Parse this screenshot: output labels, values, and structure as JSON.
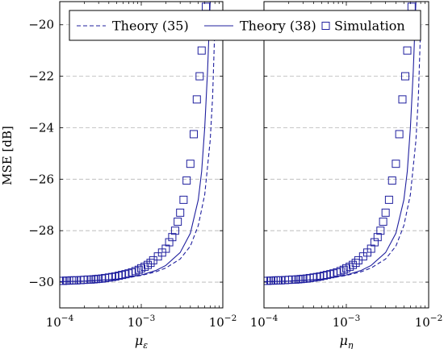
{
  "chart_data": [
    {
      "type": "line",
      "xlabel": "μ_ε",
      "ylabel": "MSE [dB]",
      "xscale": "log",
      "xlim": [
        0.0001,
        0.01
      ],
      "ylim": [
        -31,
        -19.1
      ],
      "xticks": [
        {
          "value": 0.0001,
          "base": "10",
          "exp": "−4"
        },
        {
          "value": 0.001,
          "base": "10",
          "exp": "−3"
        },
        {
          "value": 0.01,
          "base": "10",
          "exp": "−2"
        }
      ],
      "yticks": [
        {
          "value": -20,
          "label": "−20"
        },
        {
          "value": -22,
          "label": "−22"
        },
        {
          "value": -24,
          "label": "−24"
        },
        {
          "value": -26,
          "label": "−26"
        },
        {
          "value": -28,
          "label": "−28"
        },
        {
          "value": -30,
          "label": "−30"
        }
      ],
      "grid": "horizontal dashed",
      "series": [
        {
          "name": "Theory (35)",
          "style": "dashed",
          "color": "#1f1f9e",
          "x": [
            0.0001,
            0.0002,
            0.0003,
            0.0005,
            0.0007,
            0.001,
            0.0015,
            0.002,
            0.003,
            0.004,
            0.005,
            0.006,
            0.007,
            0.0075,
            0.008
          ],
          "y": [
            -29.98,
            -29.96,
            -29.93,
            -29.88,
            -29.82,
            -29.74,
            -29.6,
            -29.45,
            -29.1,
            -28.6,
            -27.8,
            -26.6,
            -24.5,
            -22.8,
            -20.0
          ]
        },
        {
          "name": "Theory (38)",
          "style": "solid",
          "color": "#1f1f9e",
          "x": [
            0.0001,
            0.0002,
            0.0003,
            0.0005,
            0.0007,
            0.001,
            0.0015,
            0.002,
            0.003,
            0.004,
            0.005,
            0.0055,
            0.006,
            0.0065,
            0.007
          ],
          "y": [
            -29.98,
            -29.96,
            -29.93,
            -29.88,
            -29.81,
            -29.72,
            -29.55,
            -29.35,
            -28.85,
            -28.1,
            -26.8,
            -25.7,
            -24.0,
            -21.8,
            -19.1
          ]
        },
        {
          "name": "Simulation",
          "style": "square-markers",
          "color": "#1f1f9e",
          "x": [
            0.0001,
            0.00011,
            0.00012,
            0.00013,
            0.00014,
            0.00015,
            0.00016,
            0.00018,
            0.0002,
            0.00022,
            0.00024,
            0.00026,
            0.00028,
            0.0003,
            0.00033,
            0.00036,
            0.0004,
            0.00044,
            0.00048,
            0.00053,
            0.00058,
            0.00064,
            0.0007,
            0.00077,
            0.00085,
            0.00093,
            0.001,
            0.0011,
            0.0012,
            0.0013,
            0.0014,
            0.0016,
            0.0018,
            0.002,
            0.0022,
            0.0024,
            0.0026,
            0.0028,
            0.003,
            0.0033,
            0.0036,
            0.004,
            0.0044,
            0.0048,
            0.0052,
            0.0055,
            0.0058,
            0.0062
          ],
          "y": [
            -29.95,
            -29.95,
            -29.94,
            -29.94,
            -29.93,
            -29.93,
            -29.93,
            -29.92,
            -29.91,
            -29.9,
            -29.9,
            -29.89,
            -29.88,
            -29.87,
            -29.86,
            -29.84,
            -29.82,
            -29.8,
            -29.78,
            -29.75,
            -29.72,
            -29.69,
            -29.66,
            -29.62,
            -29.57,
            -29.52,
            -29.46,
            -29.4,
            -29.33,
            -29.25,
            -29.15,
            -29.0,
            -28.85,
            -28.7,
            -28.45,
            -28.25,
            -28.0,
            -27.65,
            -27.3,
            -26.8,
            -26.05,
            -25.4,
            -24.25,
            -22.9,
            -22.0,
            -21.0,
            -19.7,
            -19.3
          ]
        }
      ]
    },
    {
      "type": "line",
      "xlabel": "μ_η",
      "ylabel": "",
      "xscale": "log",
      "xlim": [
        0.0001,
        0.01
      ],
      "ylim": [
        -31,
        -19.1
      ],
      "xticks": [
        {
          "value": 0.0001,
          "base": "10",
          "exp": "−4"
        },
        {
          "value": 0.001,
          "base": "10",
          "exp": "−3"
        },
        {
          "value": 0.01,
          "base": "10",
          "exp": "−2"
        }
      ],
      "grid": "horizontal dashed",
      "series": [
        {
          "name": "Theory (35)",
          "style": "dashed",
          "color": "#1f1f9e",
          "x": [
            0.0001,
            0.0002,
            0.0003,
            0.0005,
            0.0007,
            0.001,
            0.0015,
            0.002,
            0.003,
            0.004,
            0.005,
            0.006,
            0.007,
            0.0075,
            0.008
          ],
          "y": [
            -29.98,
            -29.96,
            -29.93,
            -29.88,
            -29.82,
            -29.74,
            -29.6,
            -29.45,
            -29.1,
            -28.6,
            -27.8,
            -26.6,
            -24.5,
            -22.8,
            -20.0
          ]
        },
        {
          "name": "Theory (38)",
          "style": "solid",
          "color": "#1f1f9e",
          "x": [
            0.0001,
            0.0002,
            0.0003,
            0.0005,
            0.0007,
            0.001,
            0.0015,
            0.002,
            0.003,
            0.004,
            0.005,
            0.0055,
            0.006,
            0.0065,
            0.007
          ],
          "y": [
            -29.98,
            -29.96,
            -29.93,
            -29.88,
            -29.81,
            -29.72,
            -29.55,
            -29.35,
            -28.85,
            -28.1,
            -26.8,
            -25.7,
            -24.0,
            -21.8,
            -19.1
          ]
        },
        {
          "name": "Simulation",
          "style": "square-markers",
          "color": "#1f1f9e",
          "x": [
            0.0001,
            0.00011,
            0.00012,
            0.00013,
            0.00014,
            0.00015,
            0.00016,
            0.00018,
            0.0002,
            0.00022,
            0.00024,
            0.00026,
            0.00028,
            0.0003,
            0.00033,
            0.00036,
            0.0004,
            0.00044,
            0.00048,
            0.00053,
            0.00058,
            0.00064,
            0.0007,
            0.00077,
            0.00085,
            0.00093,
            0.001,
            0.0011,
            0.0012,
            0.0013,
            0.0014,
            0.0016,
            0.0018,
            0.002,
            0.0022,
            0.0024,
            0.0026,
            0.0028,
            0.003,
            0.0033,
            0.0036,
            0.004,
            0.0044,
            0.0048,
            0.0052,
            0.0055,
            0.0058,
            0.0062
          ],
          "y": [
            -29.95,
            -29.95,
            -29.94,
            -29.94,
            -29.93,
            -29.93,
            -29.93,
            -29.92,
            -29.91,
            -29.9,
            -29.9,
            -29.89,
            -29.88,
            -29.87,
            -29.86,
            -29.84,
            -29.82,
            -29.8,
            -29.78,
            -29.75,
            -29.72,
            -29.69,
            -29.66,
            -29.62,
            -29.57,
            -29.52,
            -29.46,
            -29.4,
            -29.33,
            -29.25,
            -29.15,
            -29.0,
            -28.85,
            -28.7,
            -28.45,
            -28.25,
            -28.0,
            -27.65,
            -27.3,
            -26.8,
            -26.05,
            -25.4,
            -24.25,
            -22.9,
            -22.0,
            -21.0,
            -19.7,
            -19.3
          ]
        }
      ]
    }
  ],
  "legend": {
    "placement": "top, spanning both panels",
    "entries": [
      {
        "label": "Theory (35)",
        "style": "dashed"
      },
      {
        "label": "Theory (38)",
        "style": "solid"
      },
      {
        "label": "Simulation",
        "style": "square-markers"
      }
    ]
  },
  "colors": {
    "series": "#1f1f9e",
    "grid": "#b5b5b5",
    "axis": "#000000"
  }
}
